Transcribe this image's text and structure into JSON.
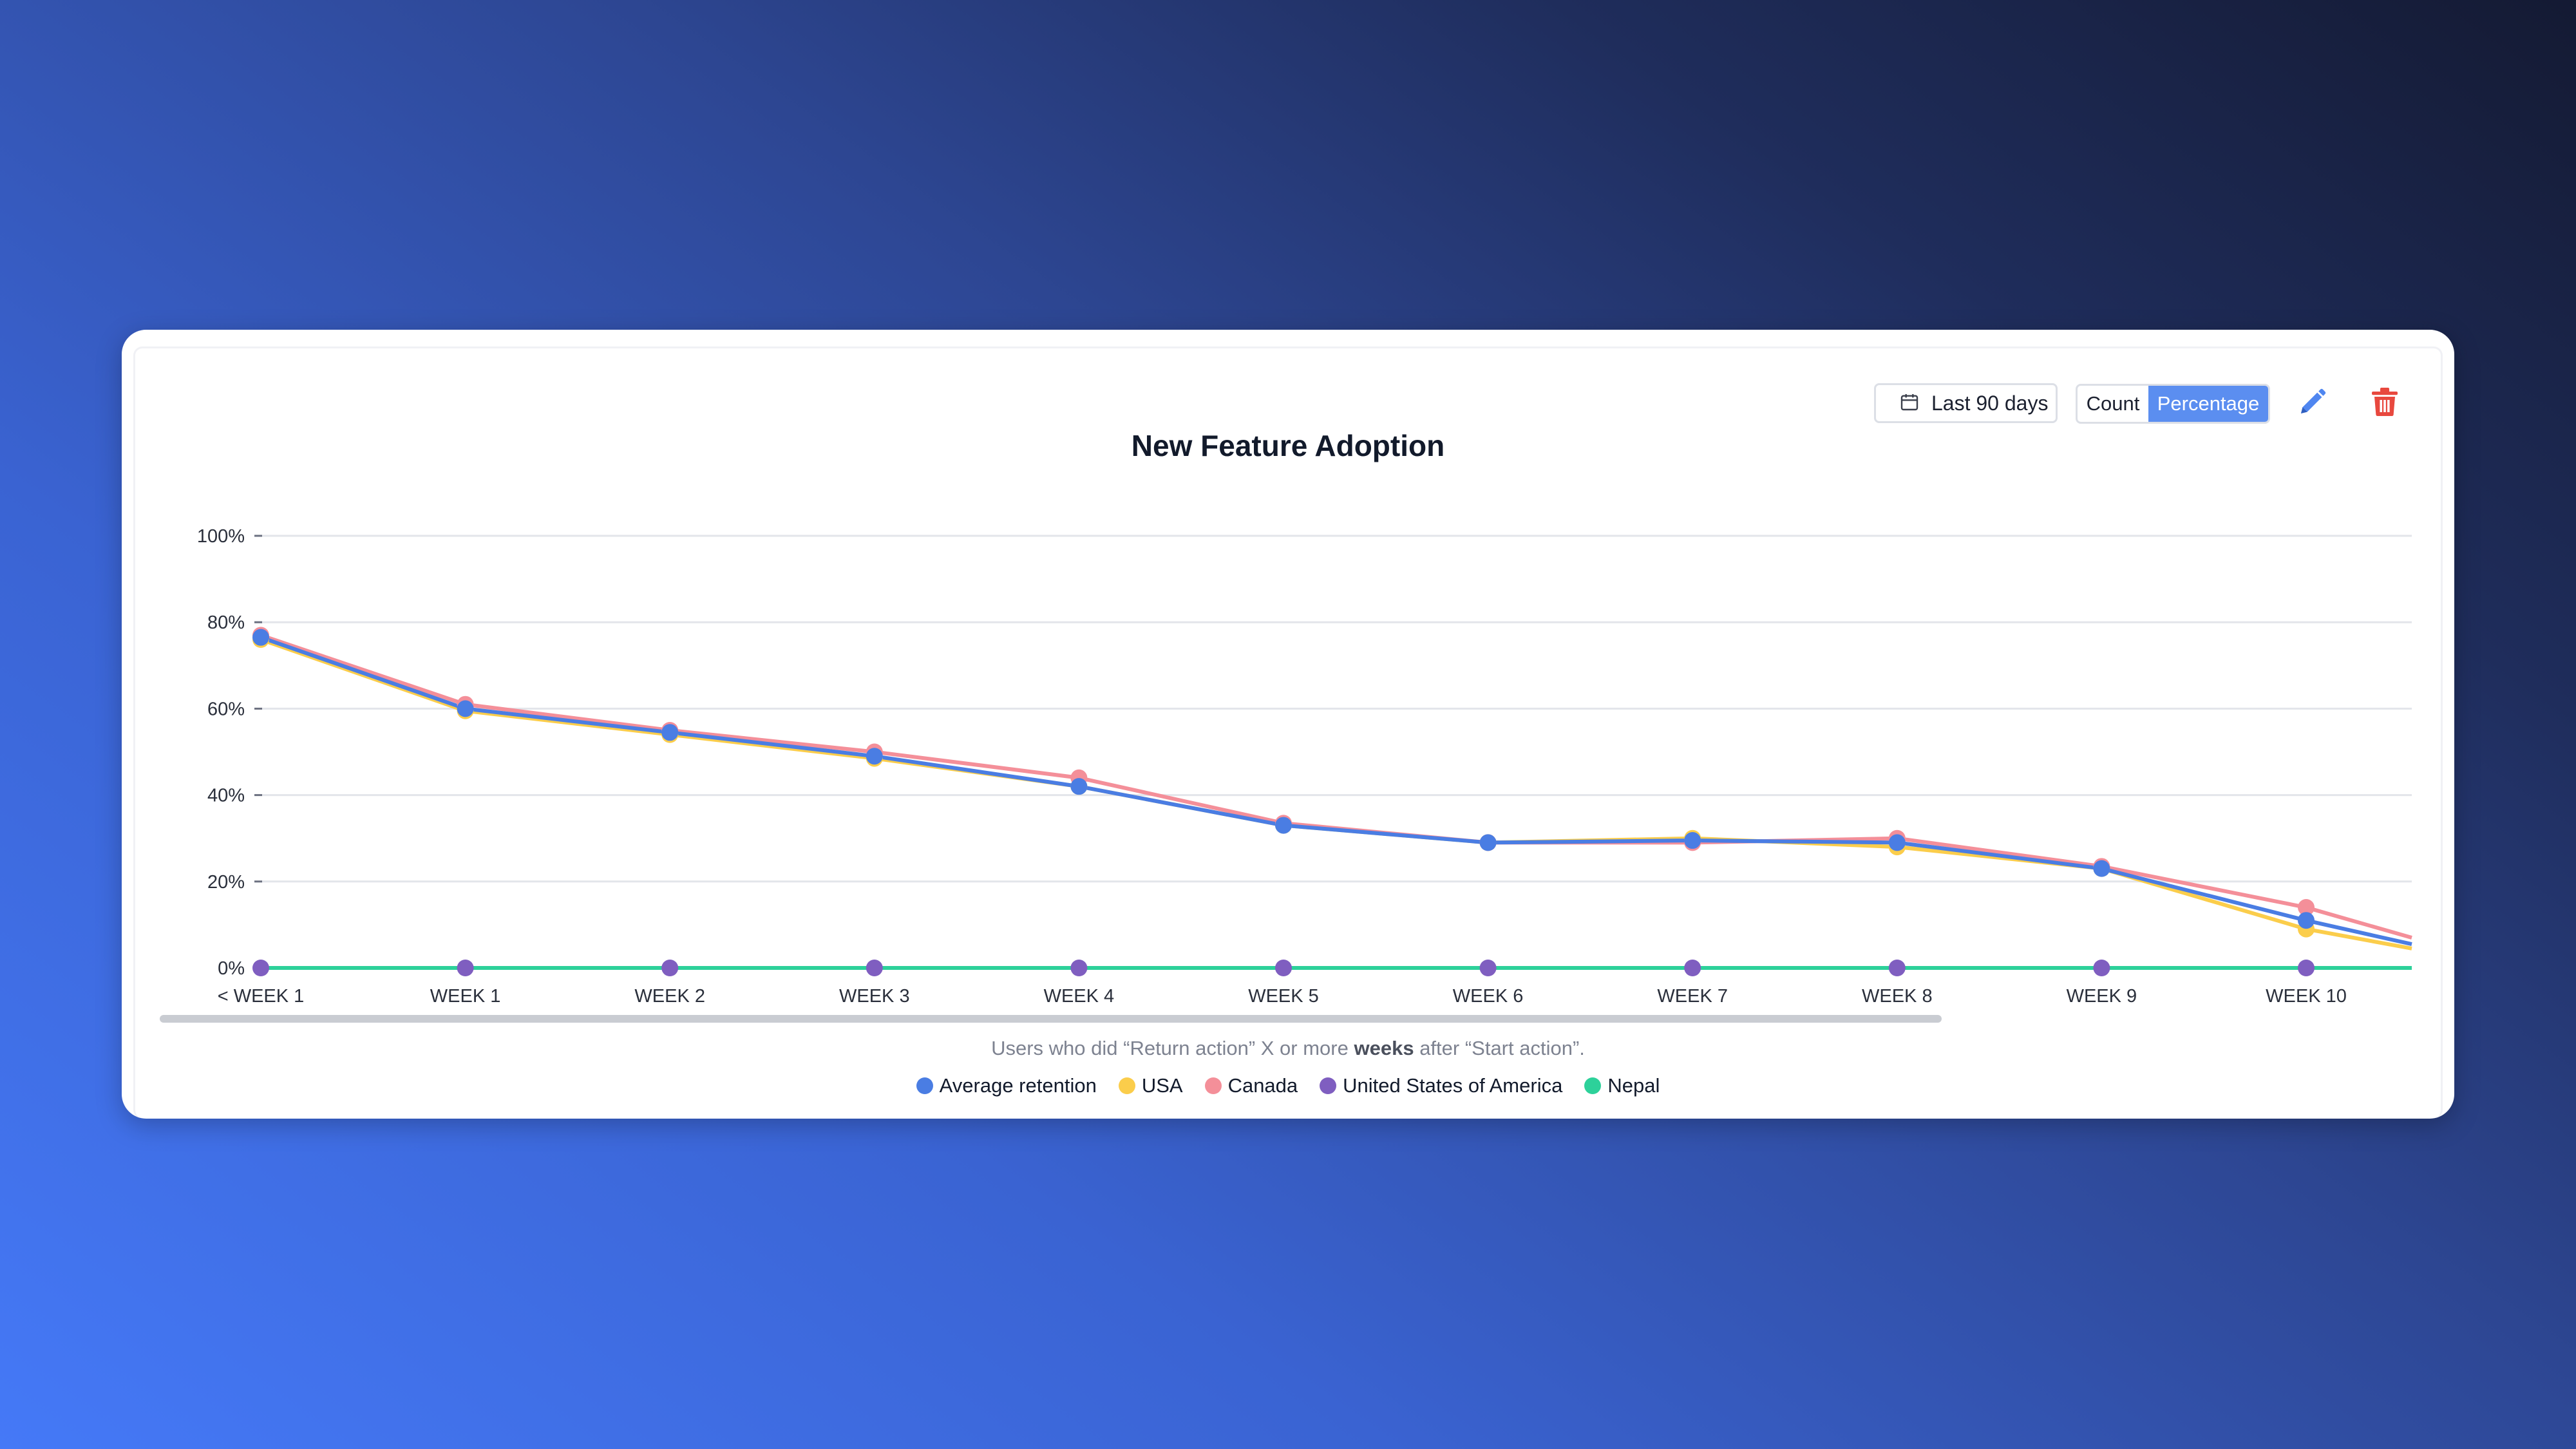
{
  "toolbar": {
    "date_range": "Last 90 days",
    "mode_count": "Count",
    "mode_percentage": "Percentage",
    "selected_mode": "Percentage"
  },
  "caption": {
    "before": "Users who did “Return action” X or more",
    "emphasis": "weeks",
    "after": "after “Start action”."
  },
  "colors": {
    "accent": "#5b8ef0",
    "edit_icon": "#4f86f0",
    "delete_icon": "#e8483e"
  },
  "chart_data": {
    "type": "line",
    "title": "New Feature Adoption",
    "xlabel": "",
    "ylabel": "",
    "ylim": [
      0,
      100
    ],
    "y_ticks": [
      "0%",
      "20%",
      "40%",
      "60%",
      "80%",
      "100%"
    ],
    "grid": true,
    "legend_position": "bottom",
    "categories": [
      "< WEEK 1",
      "WEEK 1",
      "WEEK 2",
      "WEEK 3",
      "WEEK 4",
      "WEEK 5",
      "WEEK 6",
      "WEEK 7",
      "WEEK 8",
      "WEEK 9",
      "WEEK 10"
    ],
    "series": [
      {
        "name": "USA",
        "color": "#fbcd4b",
        "values": [
          76,
          59.5,
          54,
          48.5,
          42,
          33,
          29,
          30,
          28,
          23,
          9
        ],
        "trailing_value": 4.5
      },
      {
        "name": "Canada",
        "color": "#f48f99",
        "values": [
          77,
          61,
          55,
          50,
          44,
          33.5,
          29,
          29,
          30,
          23.5,
          14
        ],
        "trailing_value": 7
      },
      {
        "name": "Average retention",
        "color": "#4a7de3",
        "values": [
          76.5,
          60,
          54.5,
          49,
          42,
          33,
          29,
          29.5,
          29,
          23,
          11
        ],
        "trailing_value": 5.5
      },
      {
        "name": "United States of America",
        "color": "#7f5ec0",
        "values": [
          0,
          0,
          0,
          0,
          0,
          0,
          0,
          0,
          0,
          0,
          0
        ],
        "trailing_value": 0
      },
      {
        "name": "Nepal",
        "color": "#2dd19a",
        "values": [
          0,
          0,
          0,
          0,
          0,
          0,
          0,
          0,
          0,
          0,
          0
        ],
        "trailing_value": 0
      }
    ],
    "legend_order": [
      "Average retention",
      "USA",
      "Canada",
      "United States of America",
      "Nepal"
    ]
  }
}
